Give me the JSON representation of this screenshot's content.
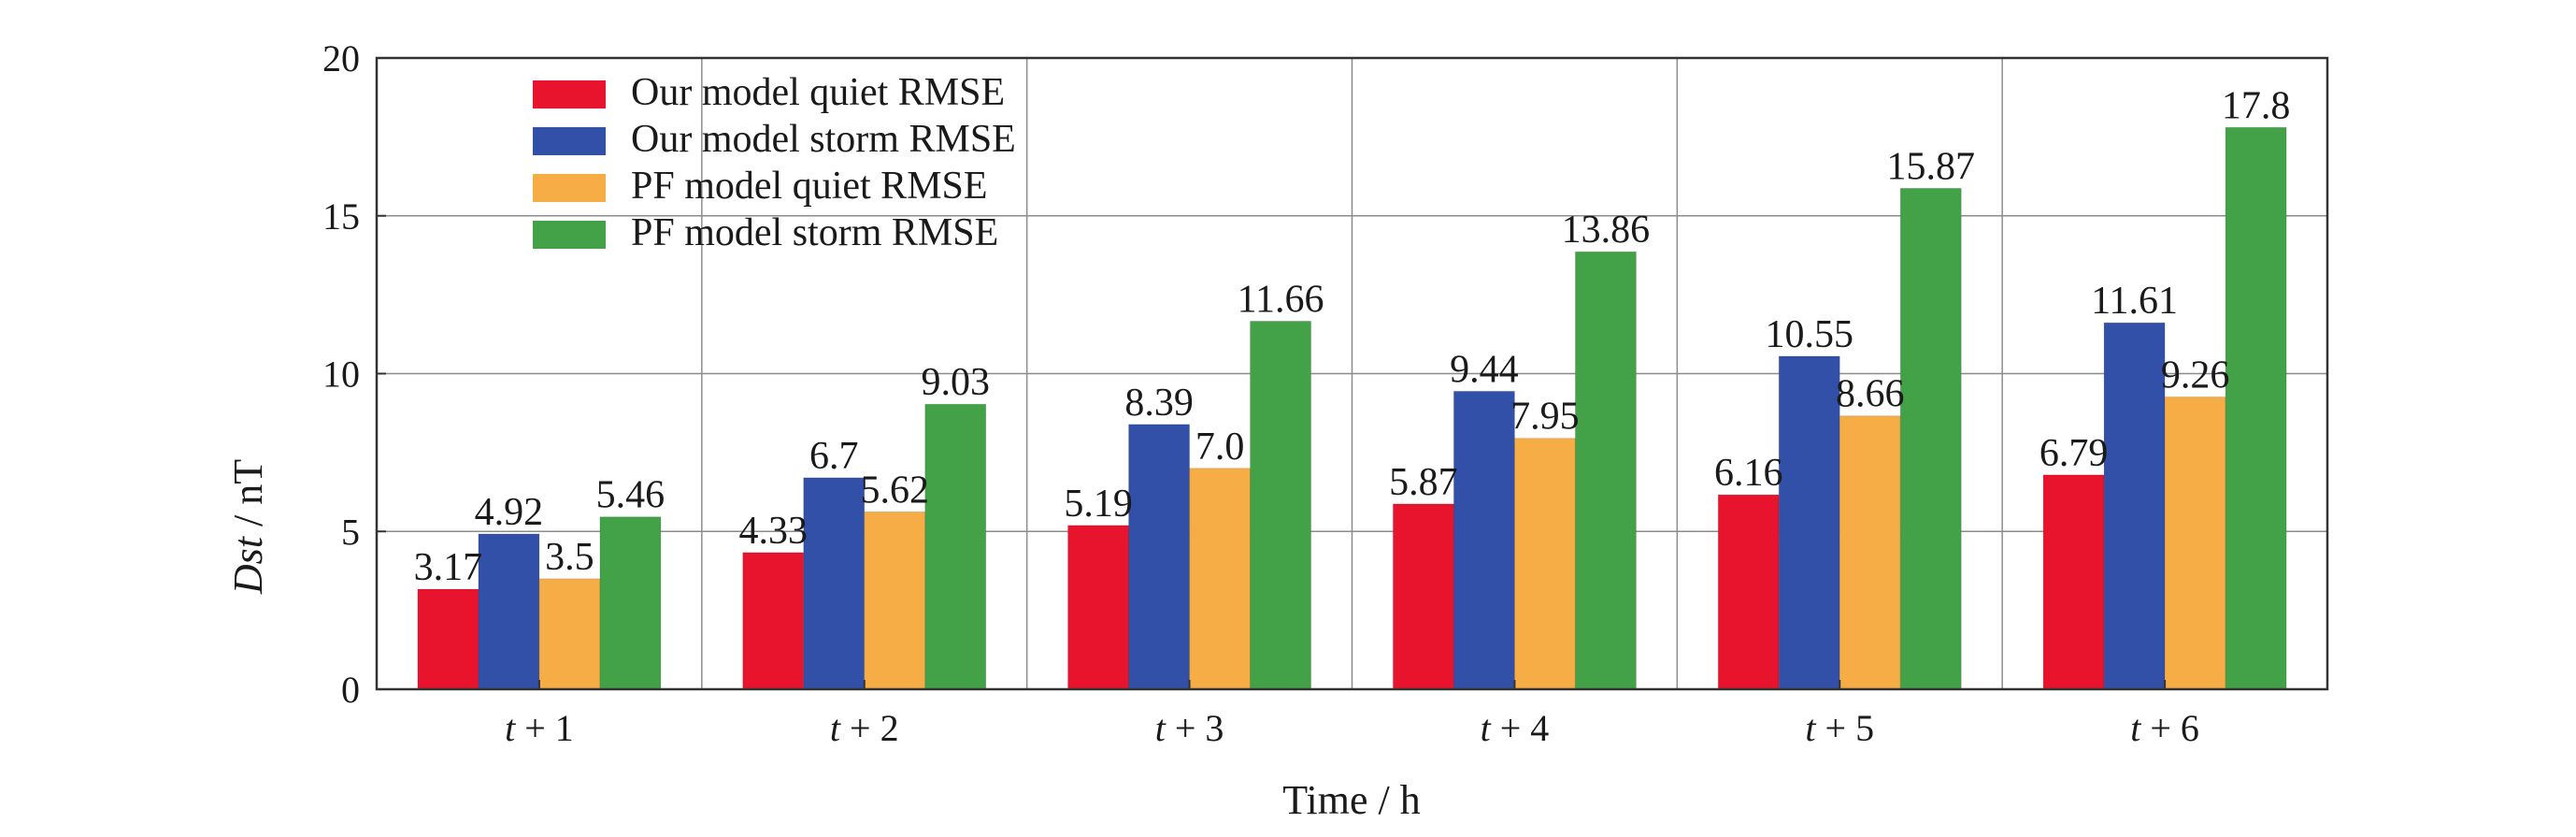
{
  "chart_data": {
    "type": "bar",
    "xlabel": "Time / h",
    "ylabel_italic": "Dst",
    "ylabel_rest": " / nT",
    "ylim": [
      0,
      20
    ],
    "yticks": [
      0,
      5,
      10,
      15,
      20
    ],
    "grid": true,
    "legend_position": "top-left",
    "categories": [
      "t + 1",
      "t + 2",
      "t + 3",
      "t + 4",
      "t + 5",
      "t + 6"
    ],
    "category_parts": [
      {
        "var": "t",
        "rest": " + 1"
      },
      {
        "var": "t",
        "rest": " + 2"
      },
      {
        "var": "t",
        "rest": " + 3"
      },
      {
        "var": "t",
        "rest": " + 4"
      },
      {
        "var": "t",
        "rest": " + 5"
      },
      {
        "var": "t",
        "rest": " + 6"
      }
    ],
    "series": [
      {
        "name": "Our model quiet RMSE",
        "color": "#e8142d",
        "values": [
          3.17,
          4.33,
          5.19,
          5.87,
          6.16,
          6.79
        ],
        "labels": [
          "3.17",
          "4.33",
          "5.19",
          "5.87",
          "6.16",
          "6.79"
        ]
      },
      {
        "name": "Our model storm RMSE",
        "color": "#3350a8",
        "values": [
          4.92,
          6.7,
          8.39,
          9.44,
          10.55,
          11.61
        ],
        "labels": [
          "4.92",
          "6.7",
          "8.39",
          "9.44",
          "10.55",
          "11.61"
        ]
      },
      {
        "name": "PF model quiet RMSE",
        "color": "#f7ad45",
        "values": [
          3.5,
          5.62,
          7.0,
          7.95,
          8.66,
          9.26
        ],
        "labels": [
          "3.5",
          "5.62",
          "7.0",
          "7.95",
          "8.66",
          "9.26"
        ]
      },
      {
        "name": "PF model storm RMSE",
        "color": "#43a148",
        "values": [
          5.46,
          9.03,
          11.66,
          13.86,
          15.87,
          17.8
        ],
        "labels": [
          "5.46",
          "9.03",
          "11.66",
          "13.86",
          "15.87",
          "17.8"
        ]
      }
    ]
  }
}
